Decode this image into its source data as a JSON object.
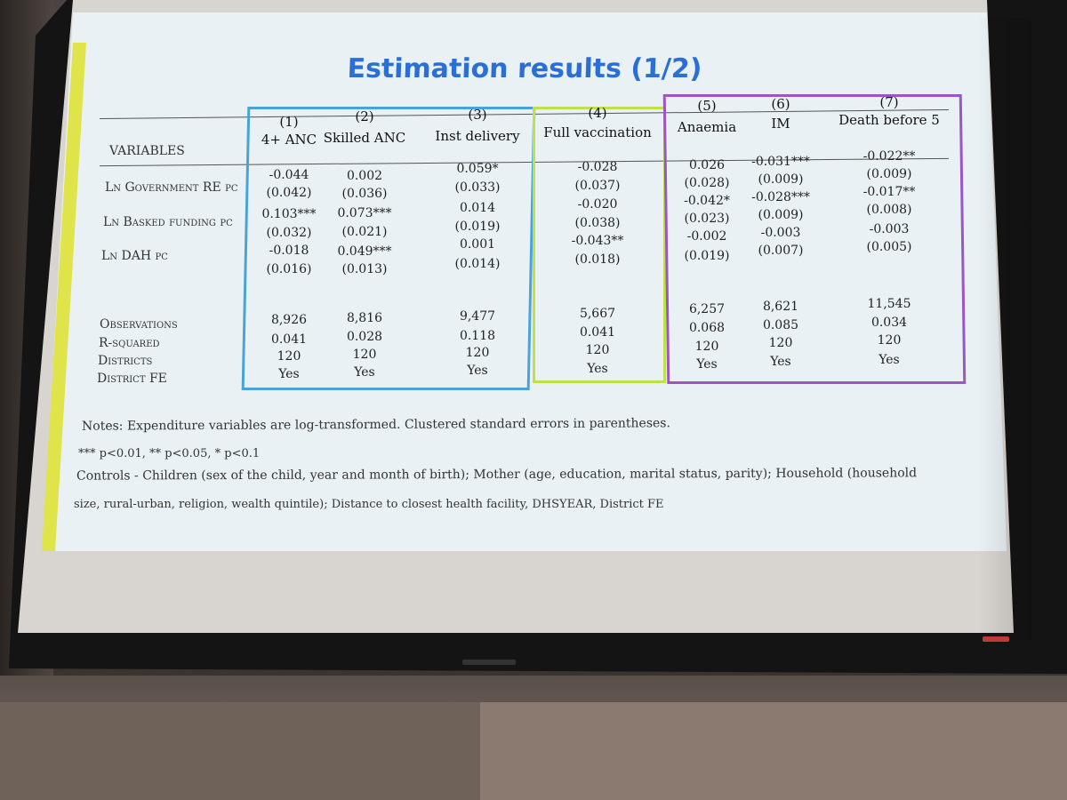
{
  "slide": {
    "title": "Estimation results (1/2)",
    "variables_header": "VARIABLES",
    "columns": [
      {
        "num": "(1)",
        "label": "4+ ANC"
      },
      {
        "num": "(2)",
        "label": "Skilled ANC"
      },
      {
        "num": "(3)",
        "label": "Inst delivery"
      },
      {
        "num": "(4)",
        "label": "Full vaccination"
      },
      {
        "num": "(5)",
        "label": "Anaemia"
      },
      {
        "num": "(6)",
        "label": "IM"
      },
      {
        "num": "(7)",
        "label": "Death before 5"
      }
    ],
    "row_labels": [
      "Ln Government RE pc",
      "Ln Basked funding pc",
      "Ln DAH pc"
    ],
    "coef_cells": [
      [
        "-0.044",
        "(0.042)",
        "0.103***",
        "(0.032)",
        "-0.018",
        "(0.016)"
      ],
      [
        "0.002",
        "(0.036)",
        "0.073***",
        "(0.021)",
        "0.049***",
        "(0.013)"
      ],
      [
        "0.059*",
        "(0.033)",
        "0.014",
        "(0.019)",
        "0.001",
        "(0.014)"
      ],
      [
        "-0.028",
        "(0.037)",
        "-0.020",
        "(0.038)",
        "-0.043**",
        "(0.018)"
      ],
      [
        "0.026",
        "(0.028)",
        "-0.042*",
        "(0.023)",
        "-0.002",
        "(0.019)"
      ],
      [
        "-0.031***",
        "(0.009)",
        "-0.028***",
        "(0.009)",
        "-0.003",
        "(0.007)"
      ],
      [
        "-0.022**",
        "(0.009)",
        "-0.017**",
        "(0.008)",
        "-0.003",
        "(0.005)"
      ]
    ],
    "stat_labels": [
      "Observations",
      "R-squared",
      "Districts",
      "District FE"
    ],
    "stat_cells": [
      [
        "8,926",
        "0.041",
        "120",
        "Yes"
      ],
      [
        "8,816",
        "0.028",
        "120",
        "Yes"
      ],
      [
        "9,477",
        "0.118",
        "120",
        "Yes"
      ],
      [
        "5,667",
        "0.041",
        "120",
        "Yes"
      ],
      [
        "6,257",
        "0.068",
        "120",
        "Yes"
      ],
      [
        "8,621",
        "0.085",
        "120",
        "Yes"
      ],
      [
        "11,545",
        "0.034",
        "120",
        "Yes"
      ]
    ],
    "notes": {
      "line1": "Notes: Expenditure variables are log-transformed. Clustered standard errors in parentheses.",
      "line2": "*** p<0.01, ** p<0.05, * p<0.1",
      "line3": "Controls - Children (sex of the child, year and month of birth); Mother (age, education, marital status, parity); Household (household",
      "line4": "size, rural-urban, religion, wealth quintile); Distance to closest health facility, DHSYEAR, District FE"
    }
  }
}
